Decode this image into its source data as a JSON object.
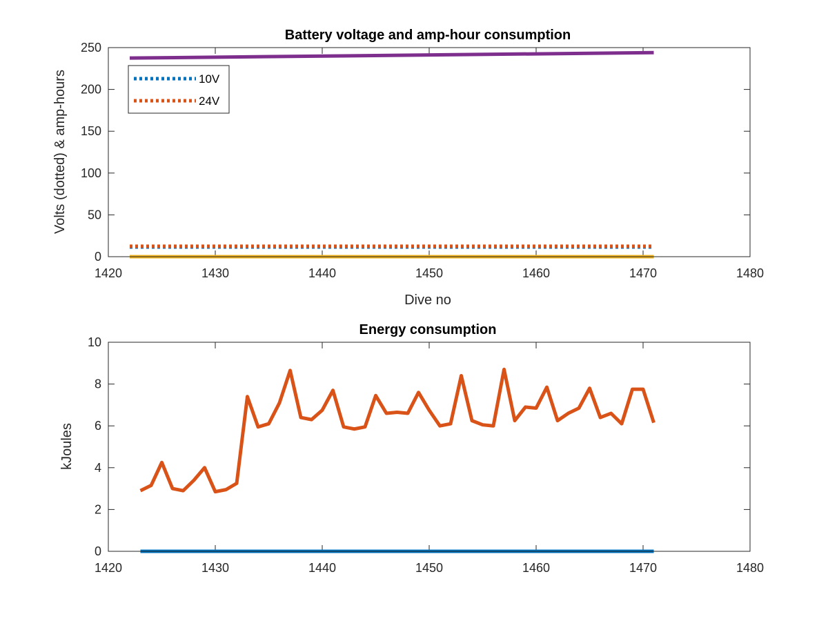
{
  "chart_data": [
    {
      "type": "line",
      "title": "Battery voltage and amp-hour consumption",
      "xlabel": "Dive no",
      "ylabel": "Volts (dotted) & amp-hours",
      "xlim": [
        1420,
        1480
      ],
      "ylim": [
        0,
        250
      ],
      "xticks": [
        "1420",
        "1430",
        "1440",
        "1450",
        "1460",
        "1470",
        "1480"
      ],
      "yticks": [
        "0",
        "50",
        "100",
        "150",
        "200",
        "250"
      ],
      "grid": false,
      "legend": {
        "placement": "top-left",
        "entries": [
          "10V",
          "24V"
        ]
      },
      "series": [
        {
          "name": "10V",
          "style": "dotted",
          "color": "#0072BD",
          "x": [
            1422,
            1471
          ],
          "y": [
            11.5,
            11.5
          ]
        },
        {
          "name": "24V",
          "style": "dotted",
          "color": "#D95319",
          "x": [
            1422,
            1471
          ],
          "y": [
            12.5,
            12.5
          ]
        },
        {
          "style": "solid",
          "color": "#EDB120",
          "x": [
            1422,
            1471
          ],
          "y": [
            0,
            0
          ]
        },
        {
          "style": "solid",
          "color": "#7E2F8E",
          "x": [
            1422,
            1471
          ],
          "y": [
            237.5,
            244
          ]
        }
      ]
    },
    {
      "type": "line",
      "title": "Energy consumption",
      "xlabel": "",
      "ylabel": "kJoules",
      "xlim": [
        1420,
        1480
      ],
      "ylim": [
        0,
        10
      ],
      "xticks": [
        "1420",
        "1430",
        "1440",
        "1450",
        "1460",
        "1470",
        "1480"
      ],
      "yticks": [
        "0",
        "2",
        "4",
        "6",
        "8",
        "10"
      ],
      "grid": false,
      "series": [
        {
          "style": "solid",
          "color": "#0072BD",
          "x": [
            1423,
            1471
          ],
          "y": [
            0,
            0
          ]
        },
        {
          "style": "solid",
          "color": "#D95319",
          "x": [
            1423,
            1424,
            1425,
            1426,
            1427,
            1428,
            1429,
            1430,
            1431,
            1432,
            1433,
            1434,
            1435,
            1436,
            1437,
            1438,
            1439,
            1440,
            1441,
            1442,
            1443,
            1444,
            1445,
            1446,
            1447,
            1448,
            1449,
            1450,
            1451,
            1452,
            1453,
            1454,
            1455,
            1456,
            1457,
            1458,
            1459,
            1460,
            1461,
            1462,
            1463,
            1464,
            1465,
            1466,
            1467,
            1468,
            1469,
            1470,
            1471
          ],
          "y": [
            2.9,
            3.15,
            4.25,
            3.0,
            2.9,
            3.4,
            4.0,
            2.85,
            2.95,
            3.25,
            7.4,
            5.95,
            6.1,
            7.1,
            8.65,
            6.4,
            6.3,
            6.75,
            7.7,
            5.95,
            5.85,
            5.95,
            7.45,
            6.6,
            6.65,
            6.6,
            7.6,
            6.75,
            6.0,
            6.1,
            8.4,
            6.25,
            6.05,
            6.0,
            8.7,
            6.25,
            6.9,
            6.85,
            7.85,
            6.25,
            6.6,
            6.85,
            7.8,
            6.4,
            6.6,
            6.1,
            7.75,
            7.75,
            6.15
          ]
        }
      ]
    }
  ]
}
